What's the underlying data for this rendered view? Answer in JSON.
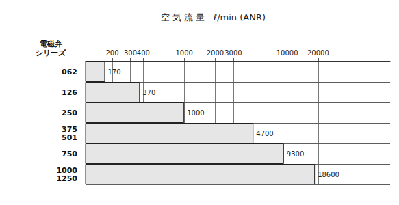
{
  "chart_data": {
    "type": "bar",
    "orientation": "horizontal",
    "log": "x",
    "title": "空 気 流 量   ℓ/min (ANR)",
    "y_label": "電磁弁\nシリーズ",
    "categories": [
      "062",
      "126",
      "250",
      "375\n501",
      "750",
      "1000\n1250"
    ],
    "values": [
      170,
      370,
      1000,
      4700,
      9300,
      18600
    ],
    "color": "#e6e6e6",
    "xlim": [
      110,
      100000
    ],
    "xticks": [
      200,
      300,
      400,
      1000,
      2000,
      3000,
      10000,
      20000
    ],
    "grid": true,
    "data_labels": true
  }
}
